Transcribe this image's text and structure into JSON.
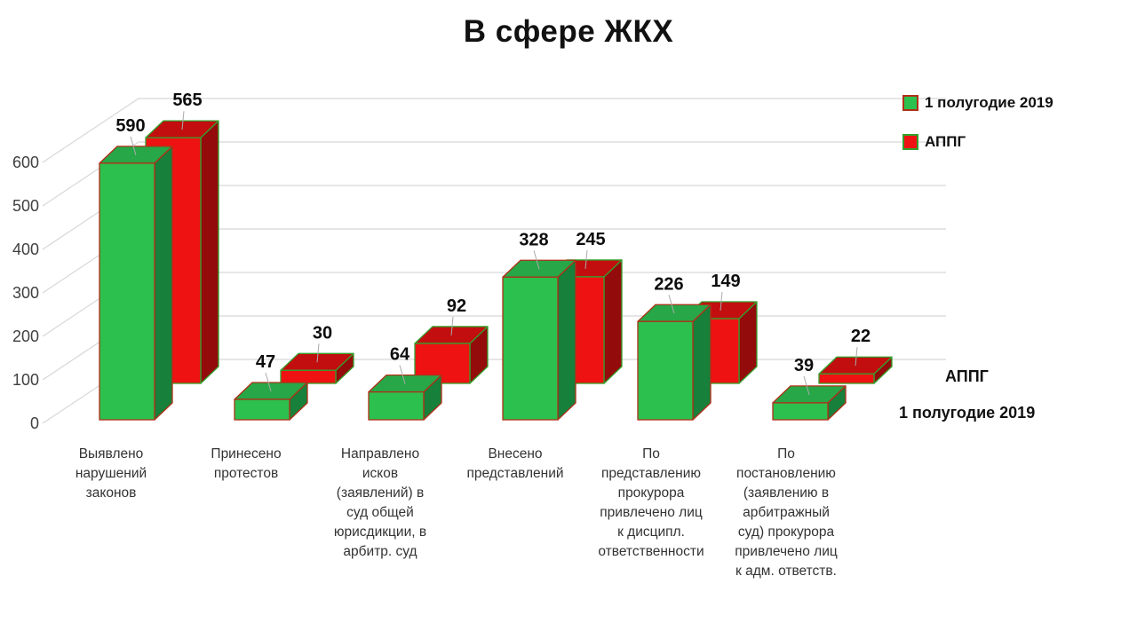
{
  "title": "В сфере ЖКХ",
  "legend": {
    "items": [
      {
        "label": "1 полугодие 2019",
        "swatch": "green"
      },
      {
        "label": "АППГ",
        "swatch": "red"
      }
    ]
  },
  "depth_axis": {
    "back_label": "АППГ",
    "front_label": "1 полугодие 2019"
  },
  "chart_data": {
    "type": "bar",
    "projection": "3d",
    "title": "В сфере ЖКХ",
    "categories": [
      "Выявлено нарушений законов",
      "Принесено протестов",
      "Направлено исков (заявлений) в суд общей юрисдикции, в арбитр. суд",
      "Внесено представлений",
      "По представлению прокурора привлечено лиц к дисципл. ответственности",
      "По постановлению (заявлению в арбитражный суд) прокурора привлечено лиц к адм. ответств."
    ],
    "category_label_lines": [
      [
        "Выявлено",
        "нарушений",
        "законов"
      ],
      [
        "Принесено",
        "протестов"
      ],
      [
        "Направлено",
        "исков",
        "(заявлений) в",
        "суд общей",
        "юрисдикции, в",
        "арбитр. суд"
      ],
      [
        "Внесено",
        "представлений"
      ],
      [
        "По",
        "представлению",
        "прокурора",
        "привлечено лиц",
        "к дисципл.",
        "ответственности"
      ],
      [
        "По",
        "постановлению",
        "(заявлению в",
        "арбитражный",
        "суд)  прокурора",
        "привлечено лиц",
        "к адм. ответств."
      ]
    ],
    "series": [
      {
        "name": "1 полугодие 2019",
        "values": [
          590,
          47,
          64,
          328,
          226,
          39
        ],
        "color": "#2cc04e"
      },
      {
        "name": "АППГ",
        "values": [
          565,
          30,
          92,
          245,
          149,
          22
        ],
        "color": "#ee1212"
      }
    ],
    "y_ticks": [
      0,
      100,
      200,
      300,
      400,
      500,
      600
    ],
    "ylim": [
      0,
      600
    ],
    "grid": true,
    "legend_position": "top-right"
  },
  "colors": {
    "green_front": "#2cc04e",
    "green_top": "#27a747",
    "green_side": "#17803a",
    "green_stroke": "#b03018",
    "red_front": "#ee1212",
    "red_top": "#c20e0e",
    "red_side": "#930b0b",
    "red_stroke": "#33a02c",
    "gridline": "#d7d7d7",
    "leader": "#aaaaaa"
  }
}
